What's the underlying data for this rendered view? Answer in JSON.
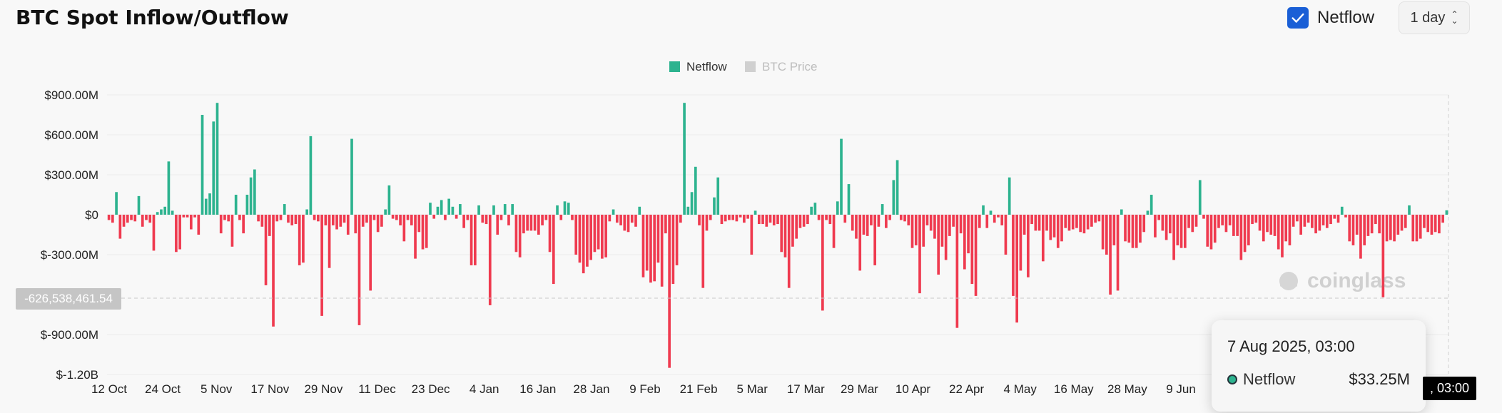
{
  "header": {
    "title": "BTC Spot Inflow/Outflow",
    "netflow_toggle_label": "Netflow",
    "netflow_checked": true,
    "interval_value": "1 day"
  },
  "colors": {
    "positive": "#2db38f",
    "negative": "#ef3a4f",
    "accent": "#1a5fd6"
  },
  "tooltip": {
    "date": "7 Aug 2025, 03:00",
    "series": "Netflow",
    "value": "$33.25M"
  },
  "crosshair": {
    "y_label": "-626,538,461.54",
    "x_label": ", 03:00"
  },
  "watermark": {
    "text": "coinglass",
    "icon": "coinglass-logo-icon"
  },
  "chart_data": {
    "type": "bar",
    "legend": [
      "Netflow",
      "BTC Price"
    ],
    "legend_active": [
      true,
      false
    ],
    "y_ticks": [
      "$900.00M",
      "$600.00M",
      "$300.00M",
      "$0",
      "$-300.00M",
      "$-900.00M",
      "$-1.20B"
    ],
    "ylim": [
      -1200,
      900
    ],
    "x_ticks": [
      "12 Oct",
      "24 Oct",
      "5 Nov",
      "17 Nov",
      "29 Nov",
      "11 Dec",
      "23 Dec",
      "4 Jan",
      "16 Jan",
      "28 Jan",
      "9 Feb",
      "21 Feb",
      "5 Mar",
      "17 Mar",
      "29 Mar",
      "10 Apr",
      "22 Apr",
      "4 May",
      "16 May",
      "28 May",
      "9 Jun"
    ],
    "unit": "million USD",
    "values": [
      -40,
      -60,
      170,
      -180,
      -90,
      -60,
      -40,
      -50,
      140,
      -90,
      -40,
      -60,
      -270,
      20,
      40,
      60,
      400,
      30,
      -280,
      -260,
      -20,
      -20,
      -110,
      -20,
      -150,
      750,
      120,
      160,
      700,
      840,
      -140,
      -40,
      -50,
      -240,
      150,
      -40,
      -140,
      150,
      280,
      340,
      -50,
      -90,
      -530,
      -160,
      -840,
      -50,
      -40,
      80,
      -60,
      -80,
      -70,
      -380,
      -360,
      40,
      590,
      -40,
      -50,
      -760,
      -80,
      -400,
      -80,
      -110,
      -90,
      -60,
      -150,
      570,
      -140,
      -830,
      -90,
      -60,
      -570,
      -40,
      -130,
      -90,
      40,
      220,
      -30,
      -40,
      -80,
      -200,
      -40,
      -80,
      -330,
      -130,
      -260,
      -250,
      90,
      -30,
      60,
      110,
      -40,
      120,
      60,
      -30,
      80,
      -100,
      -40,
      -380,
      -380,
      70,
      -60,
      -70,
      -680,
      70,
      -150,
      -40,
      80,
      -80,
      80,
      -280,
      -320,
      -140,
      -120,
      -120,
      -120,
      -150,
      -80,
      -40,
      -280,
      -520,
      70,
      -40,
      100,
      90,
      -40,
      -300,
      -360,
      -440,
      -390,
      -340,
      -280,
      -260,
      -330,
      -320,
      -50,
      40,
      -60,
      -80,
      -120,
      -130,
      -60,
      -90,
      60,
      -470,
      -420,
      -510,
      -500,
      -360,
      -540,
      -140,
      -1150,
      -520,
      -380,
      -60,
      840,
      60,
      170,
      360,
      -80,
      -550,
      -120,
      -40,
      130,
      280,
      -70,
      -50,
      -40,
      -40,
      -50,
      -20,
      -60,
      -30,
      -300,
      30,
      -70,
      -70,
      -90,
      -60,
      -80,
      -70,
      -280,
      -320,
      -550,
      -240,
      -180,
      -100,
      -90,
      -70,
      60,
      90,
      -40,
      -720,
      -40,
      -70,
      -250,
      100,
      570,
      -60,
      230,
      -120,
      -180,
      -420,
      -150,
      -160,
      -80,
      -380,
      -90,
      80,
      -100,
      -40,
      260,
      410,
      -40,
      -50,
      -80,
      -250,
      -230,
      -590,
      -240,
      -80,
      -120,
      -180,
      -450,
      -240,
      -340,
      -160,
      -90,
      -850,
      -140,
      -410,
      -290,
      -520,
      -610,
      -100,
      70,
      -100,
      30,
      -60,
      -20,
      -80,
      -300,
      280,
      -610,
      -810,
      -420,
      -150,
      -470,
      -70,
      -120,
      -120,
      -350,
      -120,
      -190,
      -170,
      -250,
      -200,
      -100,
      -120,
      -110,
      -100,
      -130,
      -140,
      -110,
      -90,
      -60,
      -50,
      -260,
      -300,
      -600,
      -230,
      -570,
      40,
      -200,
      -210,
      -250,
      -250,
      -210,
      -130,
      30,
      150,
      -170,
      -40,
      -120,
      -190,
      -140,
      -340,
      -230,
      -250,
      -250,
      -100,
      -130,
      -90,
      260,
      -30,
      -240,
      -260,
      -210,
      -100,
      -80,
      -130,
      -80,
      -160,
      -160,
      -340,
      -280,
      -230,
      -70,
      -60,
      -120,
      -200,
      -130,
      -150,
      -160,
      -260,
      -320,
      -200,
      -230,
      -90,
      -50,
      -150,
      -90,
      -60,
      -100,
      -140,
      -120,
      -80,
      -100,
      -70,
      -30,
      -60,
      60,
      -20,
      -200,
      -230,
      -150,
      -330,
      -230,
      -160,
      -140,
      -70,
      -140,
      -620,
      -200,
      -190,
      -200,
      -150,
      -120,
      -100,
      70,
      -200,
      -200,
      -180,
      -100,
      -130,
      -150,
      -130,
      -140,
      -60,
      33
    ]
  }
}
